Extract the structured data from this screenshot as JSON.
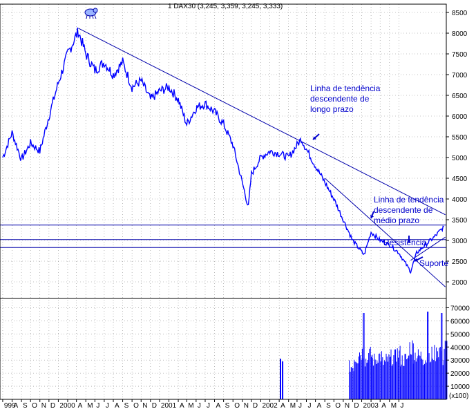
{
  "chart_data": {
    "type": "line",
    "title": "1 DAX30 (3,245, 3,359, 3,245, 3,333)",
    "xlabel": "",
    "ylabel": "",
    "ylim": [
      1600,
      8700
    ],
    "price_ticks": [
      2000,
      2500,
      3000,
      3500,
      4000,
      4500,
      5000,
      5500,
      6000,
      6500,
      7000,
      7500,
      8000,
      8500
    ],
    "volume_ticks": [
      10000,
      20000,
      30000,
      40000,
      50000,
      60000,
      70000
    ],
    "volume_unit_label": "(x100)",
    "x_tick_labels": [
      "999",
      "A",
      "S",
      "O",
      "N",
      "D",
      "2000",
      "",
      "A",
      "M",
      "J",
      "J",
      "A",
      "S",
      "O",
      "N",
      "D",
      "2001",
      "",
      "A",
      "M",
      "J",
      "J",
      "A",
      "S",
      "O",
      "N",
      "D",
      "2002",
      "",
      "A",
      "M",
      "J",
      "J",
      "A",
      "S",
      "O",
      "N",
      "D",
      "2003",
      "",
      "A",
      "M",
      "J"
    ],
    "series": [
      {
        "name": "DAX30",
        "color": "#0000ff",
        "x": [
          "1999-07-01",
          "1999-08-01",
          "1999-09-01",
          "1999-10-01",
          "1999-11-01",
          "1999-12-01",
          "2000-01-01",
          "2000-02-01",
          "2000-03-07",
          "2000-04-01",
          "2000-05-01",
          "2000-06-01",
          "2000-07-01",
          "2000-08-01",
          "2000-09-01",
          "2000-10-01",
          "2000-11-01",
          "2000-12-01",
          "2001-01-01",
          "2001-02-01",
          "2001-03-01",
          "2001-04-01",
          "2001-05-01",
          "2001-06-01",
          "2001-07-01",
          "2001-08-01",
          "2001-09-21",
          "2001-10-01",
          "2001-11-01",
          "2001-12-01",
          "2002-01-01",
          "2002-02-01",
          "2002-03-15",
          "2002-04-01",
          "2002-05-01",
          "2002-06-01",
          "2002-07-01",
          "2002-08-01",
          "2002-09-01",
          "2002-10-09",
          "2002-11-01",
          "2002-12-01",
          "2003-01-01",
          "2003-02-01",
          "2003-03-12",
          "2003-04-01",
          "2003-05-01",
          "2003-06-01",
          "2003-06-30"
        ],
        "values": [
          5000,
          5600,
          4950,
          5350,
          5150,
          6000,
          6800,
          7500,
          8050,
          7500,
          7100,
          7300,
          7000,
          7300,
          6700,
          6850,
          6400,
          6600,
          6700,
          6400,
          5800,
          6200,
          6300,
          6100,
          5800,
          5300,
          3800,
          4600,
          5000,
          5150,
          5100,
          5000,
          5450,
          5200,
          4800,
          4400,
          4000,
          3500,
          3000,
          2650,
          3200,
          3000,
          2900,
          2700,
          2250,
          2700,
          2900,
          3100,
          3330
        ]
      }
    ],
    "volume": {
      "x": [
        "2002-01-03",
        "2002-01-10",
        "2002-08-20",
        "2002-09-05",
        "2002-09-20",
        "2002-10-05",
        "2002-10-20",
        "2002-11-05",
        "2002-11-20",
        "2002-12-05",
        "2002-12-20",
        "2003-01-05",
        "2003-01-20",
        "2003-02-05",
        "2003-02-20",
        "2003-03-05",
        "2003-03-20",
        "2003-04-05",
        "2003-04-20",
        "2003-05-05",
        "2003-05-20",
        "2003-06-05",
        "2003-06-20",
        "2003-06-30"
      ],
      "values": [
        31000,
        29000,
        25000,
        32000,
        36000,
        66000,
        34000,
        30000,
        33000,
        28000,
        30000,
        32000,
        35000,
        30000,
        31000,
        40000,
        34000,
        33000,
        31000,
        67000,
        35000,
        38000,
        66000,
        40000
      ]
    },
    "horizontal_levels": [
      3370,
      3020,
      2830
    ],
    "trendlines": [
      {
        "from": [
          "2000-03-07",
          8120
        ],
        "to": [
          "2003-07-05",
          3620
        ]
      },
      {
        "from": [
          "2002-06-01",
          4500
        ],
        "to": [
          "2003-07-05",
          1880
        ]
      },
      {
        "from": [
          "2003-03-12",
          2520
        ],
        "to": [
          "2003-07-05",
          3080
        ]
      }
    ],
    "annotations": [
      {
        "lines": [
          "Linha de tendência",
          "descendente de",
          "longo prazo"
        ]
      },
      {
        "lines": [
          "Linha de tendência",
          "descendente de",
          "médio prazo"
        ]
      },
      {
        "lines": [
          "Resistência"
        ]
      },
      {
        "lines": [
          "Suporte"
        ]
      }
    ],
    "grid": true,
    "legend": "none"
  }
}
